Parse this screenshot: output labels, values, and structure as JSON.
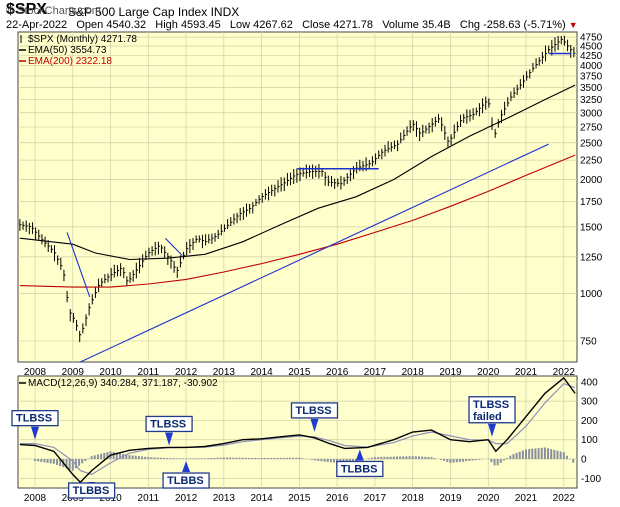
{
  "header": {
    "symbol": "$SPX",
    "name": "S&P 500 Large Cap Index",
    "exchange": "INDX",
    "brand": "© StockCharts.com",
    "date": "22-Apr-2022",
    "open_label": "Open",
    "open": "4540.32",
    "high_label": "High",
    "high": "4593.45",
    "low_label": "Low",
    "low": "4267.62",
    "close_label": "Close",
    "close": "4271.78",
    "volume_label": "Volume",
    "volume": "35.4B",
    "chg_label": "Chg",
    "chg": "-258.63 (-5.71%)"
  },
  "chart_data": [
    {
      "type": "bar",
      "panel": "price",
      "legend": [
        {
          "text": "$SPX (Monthly) 4271.78",
          "color": "#000000"
        },
        {
          "text": "EMA(50) 3554.73",
          "color": "#000000"
        },
        {
          "text": "EMA(200) 2322.18",
          "color": "#c00000"
        }
      ],
      "x_ticks": [
        "2008",
        "2009",
        "2010",
        "2011",
        "2012",
        "2013",
        "2014",
        "2015",
        "2016",
        "2017",
        "2018",
        "2019",
        "2020",
        "2021",
        "2022"
      ],
      "y_ticks": [
        750,
        1000,
        1250,
        1500,
        1750,
        2000,
        2250,
        2500,
        2750,
        3000,
        3250,
        3500,
        3750,
        4000,
        4250,
        4500,
        4750
      ],
      "y_scale": "log",
      "ylim": [
        660,
        4900
      ],
      "xlim": [
        2007.55,
        2022.35
      ],
      "grid": true,
      "series": [
        {
          "x": [
            2007.6,
            2007.9,
            2008.2,
            2008.5,
            2008.75,
            2008.9,
            2009.05,
            2009.2,
            2009.45,
            2009.7,
            2010.0,
            2010.3,
            2010.45,
            2010.7,
            2011.0,
            2011.3,
            2011.6,
            2011.75,
            2012.0,
            2012.3,
            2012.5,
            2012.8,
            2013.0,
            2013.4,
            2013.7,
            2014.0,
            2014.3,
            2014.6,
            2014.9,
            2015.3,
            2015.6,
            2015.75,
            2016.1,
            2016.5,
            2016.9,
            2017.2,
            2017.6,
            2018.0,
            2018.2,
            2018.7,
            2018.95,
            2019.3,
            2019.6,
            2020.0,
            2020.15,
            2020.3,
            2020.6,
            2020.9,
            2021.2,
            2021.6,
            2021.95,
            2022.1,
            2022.3
          ],
          "values": [
            1520,
            1500,
            1380,
            1290,
            1150,
            900,
            850,
            770,
            930,
            1060,
            1120,
            1170,
            1070,
            1160,
            1280,
            1340,
            1220,
            1140,
            1310,
            1400,
            1370,
            1420,
            1480,
            1620,
            1680,
            1800,
            1880,
            1960,
            2060,
            2100,
            2100,
            1970,
            1950,
            2140,
            2210,
            2370,
            2480,
            2810,
            2640,
            2900,
            2500,
            2900,
            2970,
            3250,
            2580,
            2900,
            3300,
            3600,
            3950,
            4400,
            4700,
            4500,
            4270
          ]
        },
        {
          "name": "EMA(50)",
          "x": [
            2007.6,
            2009.0,
            2009.6,
            2010.5,
            2011.5,
            2012.5,
            2013.5,
            2014.5,
            2015.5,
            2016.5,
            2017.5,
            2018.5,
            2019.5,
            2020.5,
            2021.5,
            2022.3
          ],
          "values": [
            1400,
            1350,
            1280,
            1230,
            1240,
            1270,
            1370,
            1520,
            1680,
            1800,
            2000,
            2300,
            2600,
            2900,
            3250,
            3550
          ]
        },
        {
          "name": "EMA(200)",
          "x": [
            2007.6,
            2009.0,
            2010.0,
            2011.0,
            2012.0,
            2013.0,
            2014.0,
            2015.0,
            2016.0,
            2017.0,
            2018.0,
            2019.0,
            2020.0,
            2021.0,
            2022.3
          ],
          "values": [
            1050,
            1040,
            1040,
            1060,
            1090,
            1140,
            1200,
            1270,
            1350,
            1450,
            1560,
            1700,
            1860,
            2050,
            2320
          ]
        }
      ],
      "annotations": [
        {
          "type": "trendline",
          "x": [
            2009.2,
            2021.6
          ],
          "values": [
            660,
            2480
          ]
        },
        {
          "type": "trendline",
          "x": [
            2008.85,
            2009.45
          ],
          "values": [
            1450,
            980
          ]
        },
        {
          "type": "trendline",
          "x": [
            2011.45,
            2011.9
          ],
          "values": [
            1400,
            1260
          ]
        },
        {
          "type": "horizontal",
          "x": [
            2014.95,
            2017.1
          ],
          "values": [
            2135,
            2135
          ]
        },
        {
          "type": "horizontal",
          "x": [
            2021.6,
            2022.2
          ],
          "values": [
            4300,
            4300
          ]
        }
      ]
    },
    {
      "type": "line",
      "panel": "macd",
      "legend": [
        {
          "text": "MACD(12,26,9) 340.284, 371.187, -30.902",
          "color": "#000000"
        }
      ],
      "y_ticks": [
        -100,
        0,
        100,
        200,
        300,
        400
      ],
      "ylim": [
        -150,
        430
      ],
      "grid": true,
      "series": [
        {
          "name": "MACD",
          "x": [
            2007.6,
            2008.0,
            2008.5,
            2009.0,
            2009.2,
            2009.5,
            2010.0,
            2010.5,
            2011.0,
            2011.5,
            2012.0,
            2012.5,
            2013.0,
            2013.5,
            2014.0,
            2014.5,
            2015.0,
            2015.4,
            2015.8,
            2016.2,
            2016.8,
            2017.5,
            2018.0,
            2018.5,
            2019.0,
            2019.5,
            2020.0,
            2020.2,
            2020.5,
            2021.0,
            2021.5,
            2022.0,
            2022.3
          ],
          "values": [
            75,
            70,
            40,
            -80,
            -120,
            -60,
            20,
            45,
            55,
            60,
            60,
            65,
            80,
            100,
            105,
            115,
            125,
            110,
            80,
            55,
            60,
            100,
            140,
            150,
            100,
            90,
            100,
            40,
            100,
            220,
            340,
            420,
            340
          ]
        },
        {
          "name": "Signal",
          "x": [
            2007.6,
            2008.0,
            2008.5,
            2009.0,
            2009.2,
            2009.5,
            2010.0,
            2010.5,
            2011.0,
            2011.5,
            2012.0,
            2012.5,
            2013.0,
            2013.5,
            2014.0,
            2014.5,
            2015.0,
            2015.4,
            2015.8,
            2016.2,
            2016.8,
            2017.5,
            2018.0,
            2018.5,
            2019.0,
            2019.5,
            2020.0,
            2020.2,
            2020.5,
            2021.0,
            2021.5,
            2022.0,
            2022.3
          ],
          "values": [
            80,
            80,
            60,
            -10,
            -60,
            -80,
            -20,
            30,
            50,
            58,
            60,
            62,
            72,
            90,
            100,
            110,
            118,
            115,
            95,
            70,
            62,
            85,
            120,
            140,
            120,
            100,
            98,
            80,
            80,
            170,
            290,
            390,
            370
          ]
        }
      ],
      "histogram": [
        {
          "x": [
            2008.0,
            2008.5,
            2009.0,
            2009.5,
            2010.0,
            2010.5,
            2011.0,
            2011.5,
            2012.0,
            2012.5,
            2013.0,
            2014.0,
            2015.0,
            2015.5,
            2016.0,
            2016.5,
            2017.0,
            2018.0,
            2018.5,
            2019.0,
            2019.5,
            2020.0,
            2020.2,
            2020.6,
            2021.0,
            2021.5,
            2022.0,
            2022.3
          ],
          "values": [
            -10,
            -25,
            -60,
            15,
            40,
            20,
            10,
            5,
            3,
            4,
            8,
            5,
            7,
            -10,
            -20,
            -10,
            10,
            15,
            10,
            -20,
            -10,
            2,
            -40,
            20,
            50,
            60,
            35,
            -30
          ]
        }
      ],
      "x_ticks": [
        "2008",
        "2009",
        "2010",
        "2011",
        "2012",
        "2013",
        "2014",
        "2015",
        "2016",
        "2017",
        "2018",
        "2019",
        "2020",
        "2021",
        "2022"
      ],
      "annotations": [
        {
          "label": "TLBSS",
          "x": 2008.0,
          "value": 90
        },
        {
          "label": "TLBBS",
          "x": 2009.5,
          "value": -120
        },
        {
          "label": "TLBSS",
          "x": 2011.55,
          "value": 60
        },
        {
          "label": "TLBBS",
          "x": 2012.0,
          "value": 0
        },
        {
          "label": "TLBSS",
          "x": 2015.4,
          "value": 130
        },
        {
          "label": "TLBBS",
          "x": 2016.6,
          "value": 60
        },
        {
          "label": "TLBSS failed",
          "x": 2020.1,
          "value": 105
        }
      ]
    }
  ]
}
